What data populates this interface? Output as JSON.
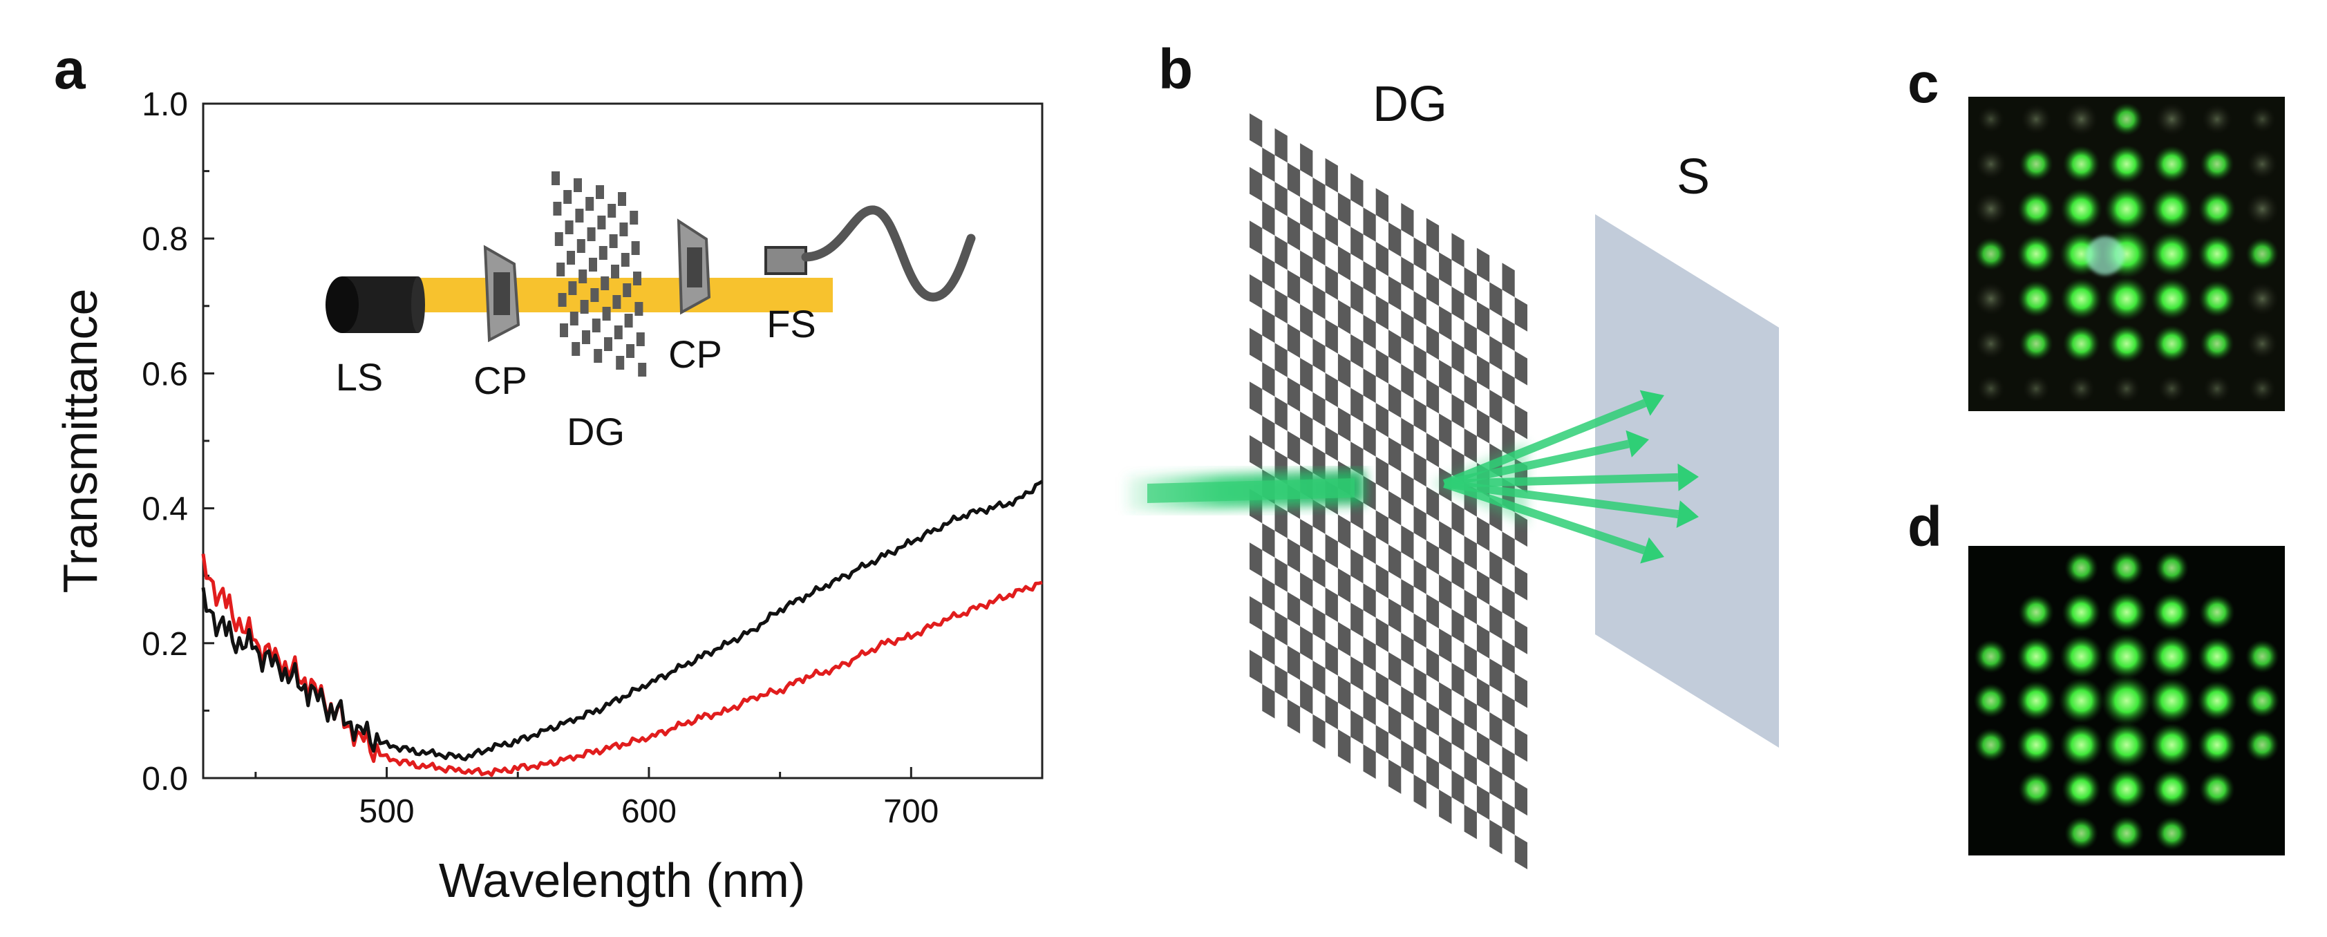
{
  "panels": {
    "a": {
      "label": "a"
    },
    "b": {
      "label": "b",
      "grating_label": "DG",
      "screen_label": "S"
    },
    "c": {
      "label": "c"
    },
    "d": {
      "label": "d"
    }
  },
  "inset": {
    "labels": [
      "LS",
      "CP",
      "DG",
      "CP",
      "FS"
    ]
  },
  "colors": {
    "black_curve": "#111111",
    "red_curve": "#e11d1d",
    "beam": "#f5b400",
    "green_spot": "#39e639",
    "grating": "#5a5a5a",
    "screen": "#b7c3d3"
  },
  "chart_data": {
    "type": "line",
    "xlabel": "Wavelength (nm)",
    "ylabel": "Transmittance",
    "xlim": [
      430,
      750
    ],
    "ylim": [
      0.0,
      1.0
    ],
    "xticks": [
      500,
      600,
      700
    ],
    "yticks": [
      0.0,
      0.2,
      0.4,
      0.6,
      0.8,
      1.0
    ],
    "grid": false,
    "series": [
      {
        "name": "black",
        "color": "#111111",
        "x": [
          430,
          440,
          450,
          460,
          470,
          480,
          490,
          500,
          510,
          520,
          530,
          540,
          550,
          560,
          570,
          580,
          590,
          600,
          610,
          620,
          630,
          640,
          650,
          660,
          670,
          680,
          690,
          700,
          710,
          720,
          730,
          740,
          750
        ],
        "y": [
          0.26,
          0.21,
          0.19,
          0.16,
          0.13,
          0.1,
          0.07,
          0.05,
          0.04,
          0.035,
          0.03,
          0.045,
          0.055,
          0.07,
          0.085,
          0.1,
          0.12,
          0.14,
          0.16,
          0.18,
          0.2,
          0.22,
          0.25,
          0.27,
          0.29,
          0.31,
          0.33,
          0.35,
          0.37,
          0.39,
          0.4,
          0.41,
          0.44
        ]
      },
      {
        "name": "red",
        "color": "#e11d1d",
        "x": [
          430,
          440,
          450,
          460,
          470,
          480,
          490,
          500,
          510,
          520,
          530,
          540,
          550,
          560,
          570,
          580,
          590,
          600,
          610,
          620,
          630,
          640,
          650,
          660,
          670,
          680,
          690,
          700,
          710,
          720,
          730,
          740,
          750
        ],
        "y": [
          0.31,
          0.25,
          0.2,
          0.17,
          0.14,
          0.1,
          0.06,
          0.03,
          0.02,
          0.015,
          0.01,
          0.008,
          0.015,
          0.02,
          0.03,
          0.04,
          0.05,
          0.06,
          0.075,
          0.09,
          0.1,
          0.12,
          0.13,
          0.15,
          0.16,
          0.18,
          0.2,
          0.21,
          0.23,
          0.245,
          0.26,
          0.275,
          0.29
        ]
      }
    ]
  }
}
